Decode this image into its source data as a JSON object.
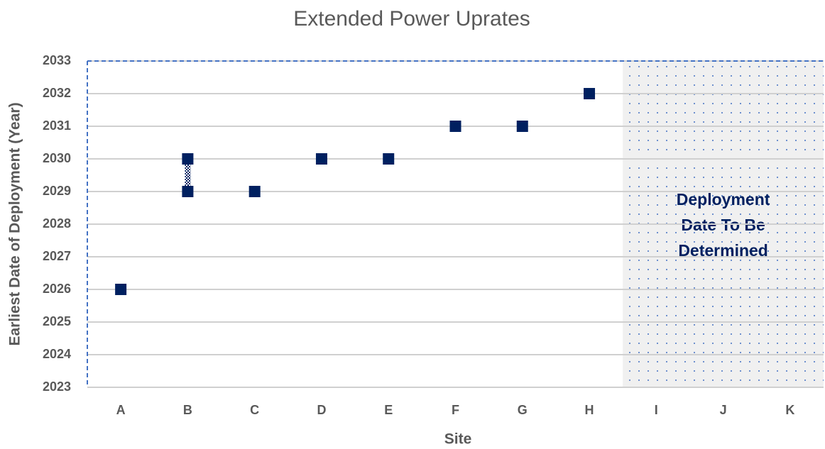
{
  "chart_data": {
    "type": "scatter",
    "title": "Extended Power Uprates",
    "x_label": "Site",
    "y_label": "Earliest Date of Deployment (Year)",
    "categories": [
      "A",
      "B",
      "C",
      "D",
      "E",
      "F",
      "G",
      "H",
      "I",
      "J",
      "K"
    ],
    "series": [
      {
        "color": "#002060",
        "values": [
          2026,
          2029,
          2029,
          2030,
          2030,
          2031,
          2031,
          2032,
          null,
          null,
          null
        ]
      },
      {
        "color": "#002060",
        "values": [
          null,
          2030,
          null,
          null,
          null,
          null,
          null,
          null,
          null,
          null,
          null
        ]
      }
    ],
    "ylim": [
      2023,
      2033
    ],
    "yticks": [
      2023,
      2024,
      2025,
      2026,
      2027,
      2028,
      2029,
      2030,
      2031,
      2032,
      2033
    ],
    "grid": true,
    "shade": {
      "from": "I",
      "to": "K",
      "color": "#f0f0f0",
      "dot_color": "#4472c4"
    },
    "annotation": [
      "Deployment",
      "Date To Be",
      "Determined"
    ]
  }
}
